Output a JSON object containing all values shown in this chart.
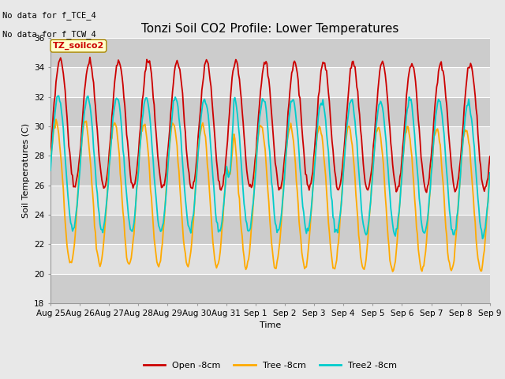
{
  "title": "Tonzi Soil CO2 Profile: Lower Temperatures",
  "ylabel": "Soil Temperatures (C)",
  "xlabel": "Time",
  "annotation_line1": "No data for f_TCE_4",
  "annotation_line2": "No data for f_TCW_4",
  "legend_label": "TZ_soilco2",
  "ylim": [
    18,
    36
  ],
  "yticks": [
    18,
    20,
    22,
    24,
    26,
    28,
    30,
    32,
    34,
    36
  ],
  "x_labels": [
    "Aug 25",
    "Aug 26",
    "Aug 27",
    "Aug 28",
    "Aug 29",
    "Aug 30",
    "Aug 31",
    "Sep 1",
    "Sep 2",
    "Sep 3",
    "Sep 4",
    "Sep 5",
    "Sep 6",
    "Sep 7",
    "Sep 8",
    "Sep 9"
  ],
  "series_labels": [
    "Open -8cm",
    "Tree -8cm",
    "Tree2 -8cm"
  ],
  "series_colors": [
    "#cc0000",
    "#ffaa00",
    "#00cccc"
  ],
  "fig_bg": "#e8e8e8",
  "plot_bg_light": "#e0e0e0",
  "plot_bg_dark": "#cccccc",
  "grid_line_color": "#ffffff",
  "title_fontsize": 11,
  "axis_label_fontsize": 8,
  "tick_fontsize": 7.5,
  "legend_fontsize": 8,
  "n_points": 480
}
